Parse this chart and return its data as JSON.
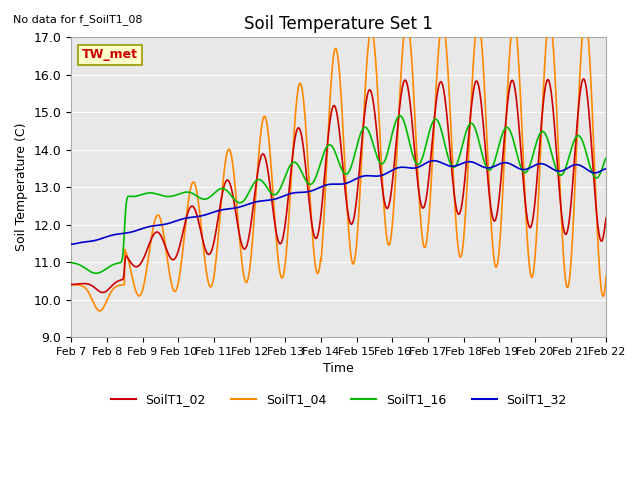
{
  "title": "Soil Temperature Set 1",
  "no_data_label": "No data for f_SoilT1_08",
  "tw_met_label": "TW_met",
  "xlabel": "Time",
  "ylabel": "Soil Temperature (C)",
  "ylim": [
    9.0,
    17.0
  ],
  "yticks": [
    9.0,
    10.0,
    11.0,
    12.0,
    13.0,
    14.0,
    15.0,
    16.0,
    17.0
  ],
  "xtick_labels": [
    "Feb 7",
    "Feb 8",
    "Feb 9",
    "Feb 10",
    "Feb 11",
    "Feb 12",
    "Feb 13",
    "Feb 14",
    "Feb 15",
    "Feb 16",
    "Feb 17",
    "Feb 18",
    "Feb 19",
    "Feb 20",
    "Feb 21",
    "Feb 22"
  ],
  "colors": {
    "SoilT1_02": "#cc0000",
    "SoilT1_04": "#ff8800",
    "SoilT1_16": "#00bb00",
    "SoilT1_32": "#0000cc"
  },
  "background_color": "#e8e8e8",
  "linewidth": 1.2
}
